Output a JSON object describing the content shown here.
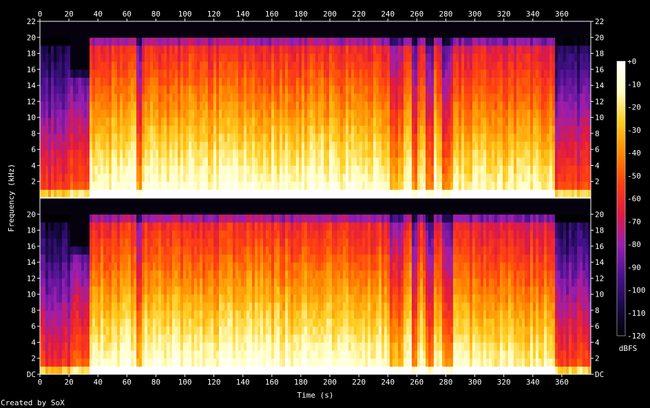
{
  "chart_data": {
    "type": "heatmap",
    "title": "",
    "xlabel": "Time (s)",
    "ylabel": "Frequency (kHz)",
    "credit": "Created by SoX",
    "xlim": [
      0,
      380
    ],
    "x_ticks": [
      0,
      20,
      40,
      60,
      80,
      100,
      120,
      140,
      160,
      180,
      200,
      220,
      240,
      260,
      280,
      300,
      320,
      340,
      360
    ],
    "ylim_khz": [
      0,
      22
    ],
    "y_ticks_top": [
      "2",
      "4",
      "6",
      "8",
      "10",
      "12",
      "14",
      "16",
      "18",
      "20",
      "22"
    ],
    "y_ticks_bottom": [
      "DC",
      "2",
      "4",
      "6",
      "8",
      "10",
      "12",
      "14",
      "16",
      "18",
      "20"
    ],
    "channels": 2,
    "colorbar": {
      "label": "dBFS",
      "range": [
        -120,
        0
      ],
      "ticks": [
        "+0",
        "-10",
        "-20",
        "-30",
        "-40",
        "-50",
        "-60",
        "-70",
        "-80",
        "-90",
        "-100",
        "-110",
        "-120"
      ],
      "colormap": [
        "#000000",
        "#1a0a4a",
        "#4a1290",
        "#9a1fb0",
        "#e01a40",
        "#ff4010",
        "#ff8a00",
        "#ffcc20",
        "#ffffc0",
        "#ffffff"
      ]
    },
    "segments": [
      {
        "start": 0,
        "end": 20,
        "cutoff_khz": 20,
        "level": 0.28
      },
      {
        "start": 20,
        "end": 34,
        "cutoff_khz": 16,
        "level": 0.35
      },
      {
        "start": 34,
        "end": 66,
        "cutoff_khz": 20,
        "level": 0.68
      },
      {
        "start": 66,
        "end": 70,
        "cutoff_khz": 20,
        "level": 0.45
      },
      {
        "start": 70,
        "end": 240,
        "cutoff_khz": 20,
        "level": 0.68
      },
      {
        "start": 240,
        "end": 250,
        "cutoff_khz": 20,
        "level": 0.5
      },
      {
        "start": 250,
        "end": 256,
        "cutoff_khz": 20,
        "level": 0.66
      },
      {
        "start": 256,
        "end": 260,
        "cutoff_khz": 20,
        "level": 0.42
      },
      {
        "start": 260,
        "end": 266,
        "cutoff_khz": 20,
        "level": 0.66
      },
      {
        "start": 266,
        "end": 270,
        "cutoff_khz": 20,
        "level": 0.42
      },
      {
        "start": 270,
        "end": 276,
        "cutoff_khz": 20,
        "level": 0.66
      },
      {
        "start": 276,
        "end": 285,
        "cutoff_khz": 20,
        "level": 0.45
      },
      {
        "start": 285,
        "end": 355,
        "cutoff_khz": 20,
        "level": 0.63
      },
      {
        "start": 355,
        "end": 380,
        "cutoff_khz": 20,
        "level": 0.3
      }
    ]
  }
}
